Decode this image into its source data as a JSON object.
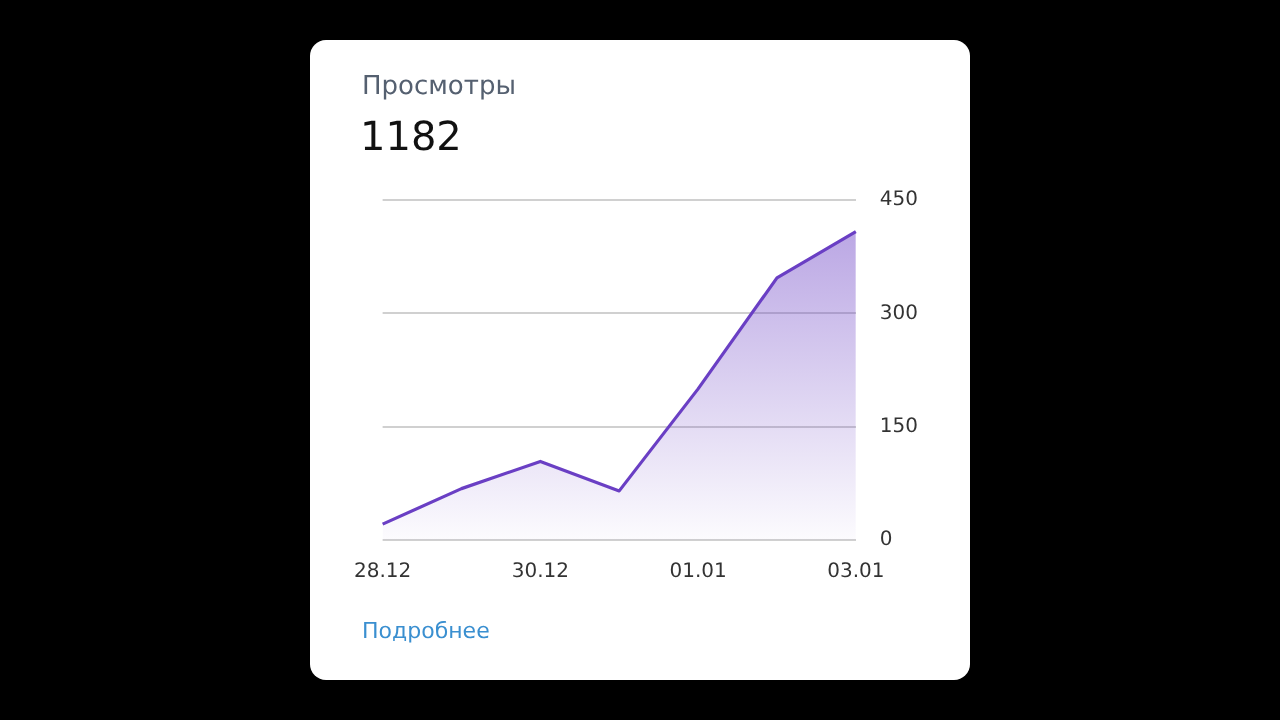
{
  "chart_data": {
    "type": "area",
    "title": "Просмотры",
    "subtitle": "1182",
    "annotations": [
      "Подробнее"
    ],
    "categories": [
      "28.12",
      null,
      "30.12",
      null,
      "01.01",
      null,
      "03.01"
    ],
    "series": [
      {
        "color": "#6a3fc4",
        "values": [
          21,
          68,
          104,
          65,
          200,
          347,
          408
        ]
      }
    ],
    "ylim": [
      0,
      450
    ],
    "yticks": [
      0,
      150,
      300,
      450
    ],
    "grid": "y",
    "legend": false,
    "marker": "none"
  }
}
